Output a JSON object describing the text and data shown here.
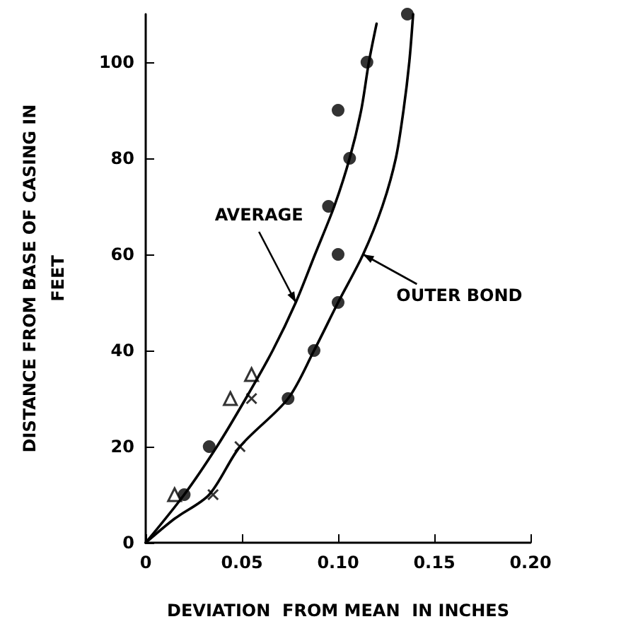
{
  "chart_data": {
    "type": "line",
    "xlabel": "DEVIATION  FROM MEAN  IN INCHES",
    "ylabel": "DISTANCE FROM BASE OF CASING IN\nFEET",
    "xlim": [
      0,
      0.2
    ],
    "xticks": [
      0,
      {
        "value": 0.05,
        "label": "0.05"
      },
      {
        "value": 0.1,
        "label": "0.10"
      },
      {
        "value": 0.15,
        "label": "0.15"
      },
      {
        "value": 0.2,
        "label": "0.20"
      }
    ],
    "ylim": [
      0,
      110
    ],
    "yticks": [
      0,
      20,
      40,
      60,
      80,
      100
    ],
    "grid": false,
    "line_style": "solid",
    "series": [
      {
        "type": "line",
        "marker": "none",
        "color": "#000000",
        "x": [
          0,
          0.02,
          0.037,
          0.052,
          0.066,
          0.078,
          0.088,
          0.098,
          0.106,
          0.112,
          0.116,
          0.12
        ],
        "values": [
          0,
          10,
          20,
          30,
          40,
          50,
          60,
          70,
          80,
          90,
          100,
          108
        ]
      },
      {
        "marker": "none",
        "color": "#000000",
        "x": [
          0,
          0.015,
          0.033,
          0.049,
          0.074,
          0.0875,
          0.1,
          0.113,
          0.123,
          0.13,
          0.134,
          0.137,
          0.139
        ],
        "values": [
          0,
          5,
          10,
          20,
          30,
          40,
          50,
          60,
          70,
          80,
          90,
          100,
          110
        ]
      },
      {
        "type": "scatter",
        "marker": "circle",
        "color": "#000000",
        "x": [
          0.02,
          0.033,
          0.074,
          0.0875,
          0.1,
          0.1,
          0.095,
          0.106,
          0.1,
          0.115,
          0.136
        ],
        "values": [
          10,
          20,
          30,
          40,
          50,
          60,
          70,
          80,
          90,
          100,
          110
        ]
      },
      {
        "type": "scatter",
        "marker": "cross",
        "color": "#000000",
        "x": [
          0.035,
          0.049,
          0.055
        ],
        "values": [
          10,
          20,
          30
        ]
      },
      {
        "type": "scatter",
        "marker": "triangle",
        "color": "#000000",
        "x": [
          0.015,
          0.044,
          0.055
        ],
        "values": [
          10,
          30,
          35
        ]
      }
    ],
    "annotations": [
      {
        "text": "AVERAGE",
        "x": 0.078,
        "y": 50
      },
      {
        "text": "OUTER BOND",
        "x": 0.113,
        "y": 60
      }
    ]
  }
}
